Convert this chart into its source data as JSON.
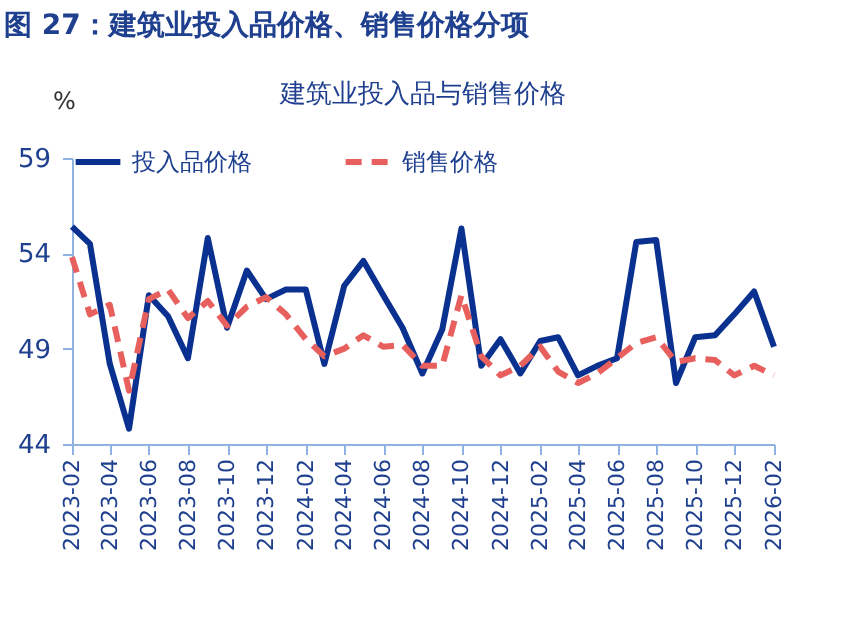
{
  "chart_data": {
    "type": "line",
    "title": "图 27：建筑业投入品价格、销售价格分项",
    "subtitle": "建筑业投入品与销售价格",
    "ylabel": "%",
    "x": [
      "2023-02",
      "2023-03",
      "2023-04",
      "2023-05",
      "2023-06",
      "2023-07",
      "2023-08",
      "2023-09",
      "2023-10",
      "2023-11",
      "2023-12",
      "2024-01",
      "2024-02",
      "2024-03",
      "2024-04",
      "2024-05",
      "2024-06",
      "2024-07",
      "2024-08",
      "2024-09",
      "2024-10",
      "2024-11",
      "2024-12",
      "2025-01",
      "2025-02",
      "2025-03",
      "2025-04",
      "2025-05",
      "2025-06",
      "2025-07",
      "2025-08",
      "2025-09",
      "2025-10",
      "2025-11",
      "2025-12",
      "2026-01",
      "2026-02"
    ],
    "series": [
      {
        "name": "投入品价格",
        "color": "#0a3190",
        "line_style": "solid",
        "values": [
          55.4,
          54.5,
          48.2,
          44.8,
          51.8,
          50.7,
          48.5,
          54.8,
          50.1,
          53.1,
          51.6,
          52.1,
          52.1,
          48.2,
          52.3,
          53.6,
          51.8,
          50.1,
          47.7,
          50.0,
          55.3,
          48.1,
          49.5,
          47.7,
          49.4,
          49.6,
          47.6,
          48.1,
          48.5,
          54.6,
          54.7,
          47.2,
          49.6,
          49.7,
          50.8,
          52.0,
          49.1
        ]
      },
      {
        "name": "销售价格",
        "color": "#e8605e",
        "line_style": "dashed",
        "values": [
          53.8,
          50.8,
          51.3,
          46.8,
          51.6,
          52.1,
          50.6,
          51.5,
          50.2,
          51.2,
          51.7,
          50.8,
          49.5,
          48.6,
          49.0,
          49.7,
          49.1,
          49.2,
          48.1,
          48.1,
          51.8,
          48.6,
          47.6,
          48.1,
          49.1,
          47.8,
          47.2,
          47.7,
          48.5,
          49.3,
          49.6,
          48.3,
          48.5,
          48.4,
          47.6,
          48.1,
          47.6
        ]
      }
    ],
    "xlim": [
      "2023-02",
      "2026-02"
    ],
    "xticks": [
      "2023-02",
      "2023-04",
      "2023-06",
      "2023-08",
      "2023-10",
      "2023-12",
      "2024-02",
      "2024-04",
      "2024-06",
      "2024-08",
      "2024-10",
      "2024-12",
      "2025-02",
      "2025-04",
      "2025-06",
      "2025-08",
      "2025-10",
      "2025-12",
      "2026-02"
    ],
    "ylim": [
      44,
      59
    ],
    "yticks": [
      44,
      49,
      54,
      59
    ],
    "grid": false,
    "legend": "top",
    "marker": "none"
  }
}
